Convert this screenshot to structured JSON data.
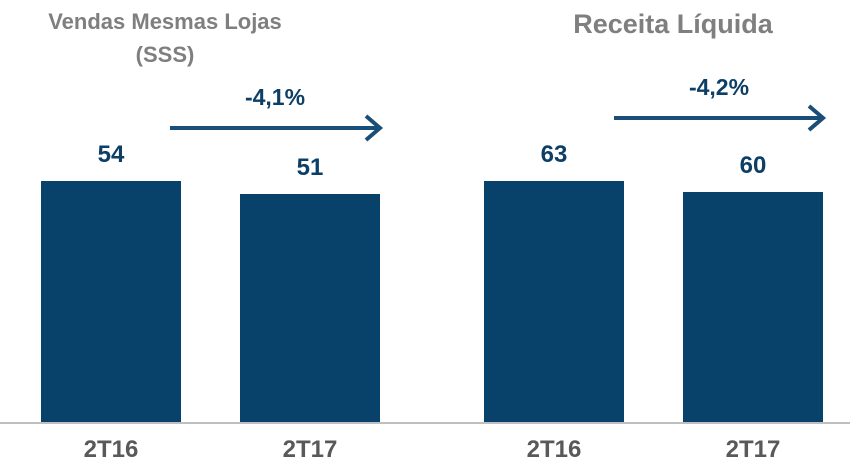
{
  "chart_data": [
    {
      "type": "bar",
      "title": "Vendas Mesmas Lojas (SSS)",
      "categories": [
        "2T16",
        "2T17"
      ],
      "values": [
        54,
        51
      ],
      "annotation": "-4,1%",
      "color": "#08426b"
    },
    {
      "type": "bar",
      "title": "Receita Líquida",
      "categories": [
        "2T16",
        "2T17"
      ],
      "values": [
        63,
        60
      ],
      "annotation": "-4,2%",
      "color": "#08426b"
    }
  ]
}
